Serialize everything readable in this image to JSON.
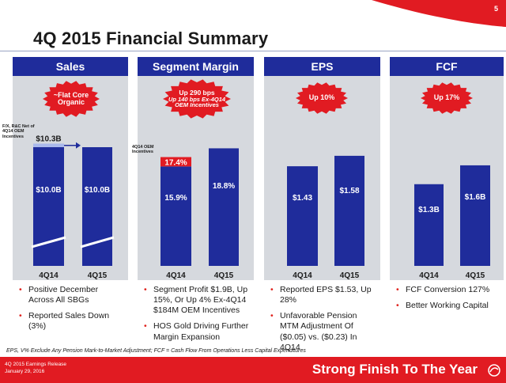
{
  "page": {
    "number": "5",
    "title": "4Q 2015 Financial Summary"
  },
  "colors": {
    "navy": "#1f2c9b",
    "red": "#e11b22",
    "panel_gray": "#d6d9de",
    "adjustment_red": "#e11b22",
    "restated_light": "#aab9ec",
    "bullet_red": "#e0231e"
  },
  "panels": [
    {
      "header": "Sales",
      "burst": {
        "lines": [
          "~Flat Core",
          "Organic"
        ]
      },
      "bullets": [
        "Positive December Across All SBGs",
        "Reported Sales Down (3%)"
      ]
    },
    {
      "header": "Segment Margin",
      "burst": {
        "lines": [
          "Up 290 bps",
          "Up 140 bps Ex-4Q14",
          "OEM Incentives"
        ]
      },
      "bullets": [
        "Segment Profit $1.9B, Up 15%, Or Up 4% Ex-4Q14 $184M OEM Incentives",
        "HOS Gold Driving Further Margin Expansion"
      ]
    },
    {
      "header": "EPS",
      "burst": {
        "lines": [
          "Up 10%"
        ]
      },
      "bullets": [
        "Reported EPS $1.53, Up 28%",
        "Unfavorable Pension MTM Adjustment Of ($0.05) vs. ($0.23) In 4Q14"
      ]
    },
    {
      "header": "FCF",
      "burst": {
        "lines": [
          "Up 17%"
        ]
      },
      "bullets": [
        "FCF Conversion 127%",
        "Better Working Capital"
      ]
    }
  ],
  "chart_data": [
    {
      "type": "bar",
      "title": "Sales",
      "categories": [
        "4Q14",
        "4Q15"
      ],
      "values": [
        10.0,
        10.0
      ],
      "value_labels": [
        "$10.0B",
        "$10.0B"
      ],
      "axis_break": true,
      "adjustment": {
        "label": "F/X, R&C Net of 4Q14 OEM Incentives",
        "base": 10.0,
        "total": 10.3,
        "total_label": "$10.3B",
        "arrow": "from 4Q14 total to 4Q15"
      },
      "ylim": [
        0,
        10.8
      ]
    },
    {
      "type": "bar",
      "title": "Segment Margin",
      "categories": [
        "4Q14",
        "4Q15"
      ],
      "values": [
        15.9,
        18.8
      ],
      "value_labels": [
        "15.9%",
        "18.8%"
      ],
      "stack": {
        "label": "4Q14 OEM Incentives",
        "base": 15.9,
        "total": 17.4,
        "total_label": "17.4%"
      },
      "ylim": [
        0,
        20.5
      ]
    },
    {
      "type": "bar",
      "title": "EPS",
      "categories": [
        "4Q14",
        "4Q15"
      ],
      "values": [
        1.43,
        1.58
      ],
      "value_labels": [
        "$1.43",
        "$1.58"
      ],
      "ylim": [
        0,
        1.84
      ]
    },
    {
      "type": "bar",
      "title": "FCF",
      "categories": [
        "4Q14",
        "4Q15"
      ],
      "values": [
        1.3,
        1.6
      ],
      "value_labels": [
        "$1.3B",
        "$1.6B"
      ],
      "ylim": [
        0,
        2.04
      ]
    }
  ],
  "footnote": "EPS, V% Exclude Any Pension Mark-to-Market Adjustment; FCF = Cash Flow From Operations Less Capital Expenditures",
  "footer": {
    "line1": "4Q 2015 Earnings Release",
    "line2": "January 29, 2016",
    "tagline": "Strong Finish To The Year"
  }
}
